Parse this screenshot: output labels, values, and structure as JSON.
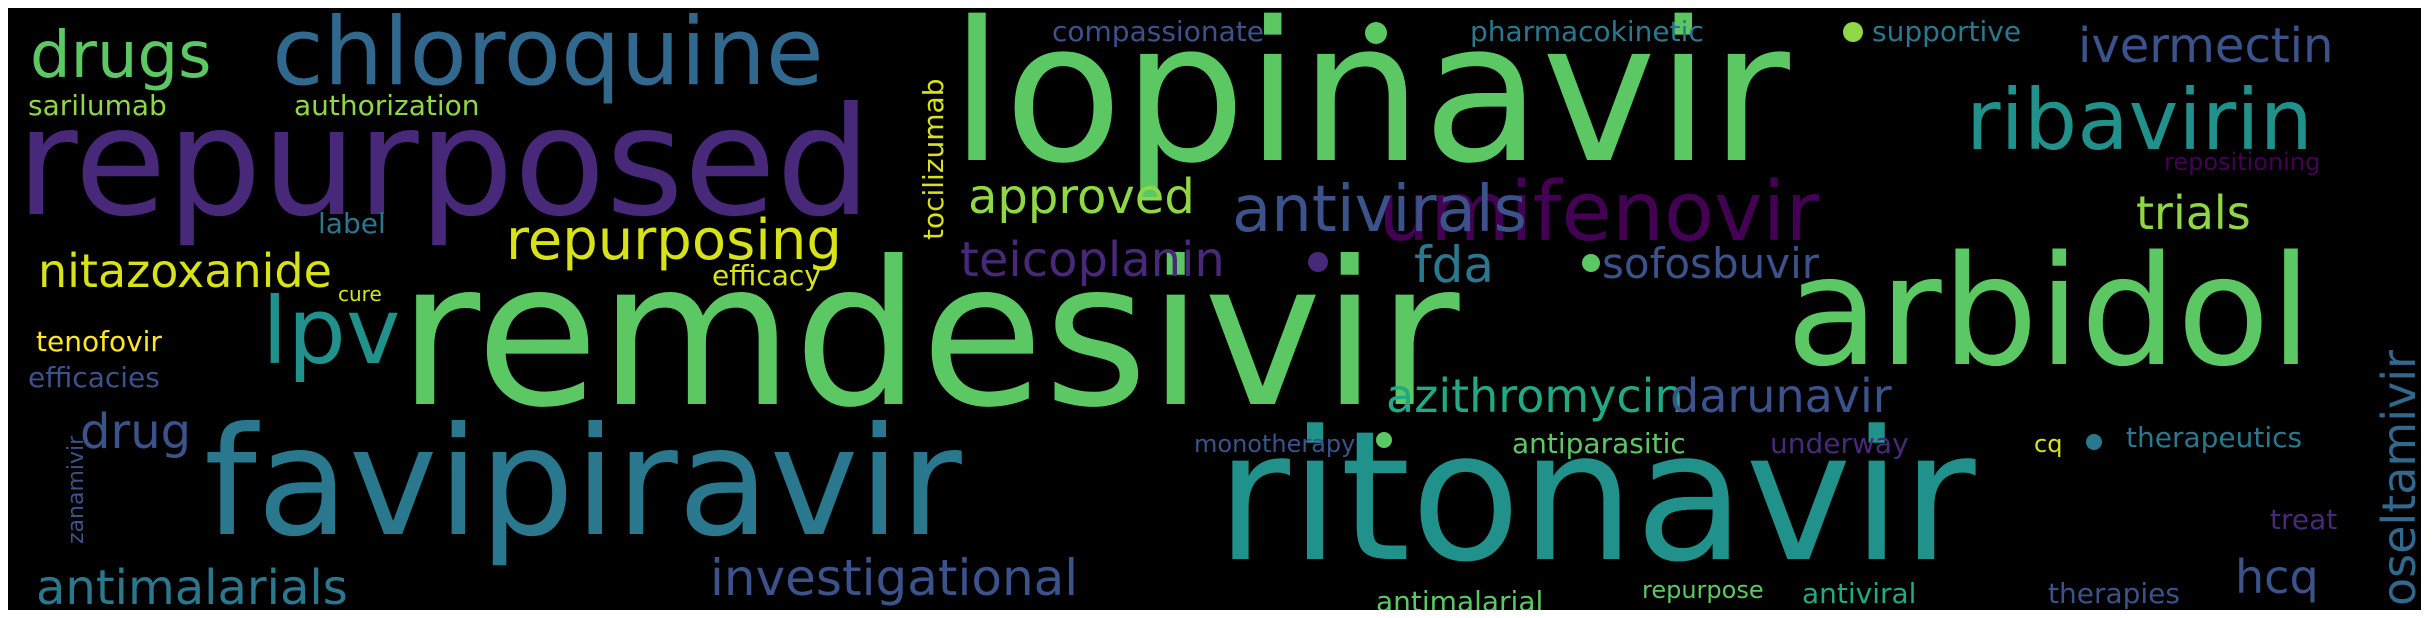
{
  "colors": {
    "background": "#000000",
    "frame": "#ffffff",
    "green": "#5cc863",
    "light_green": "#8fd744",
    "yellow": "#d8e219",
    "teal": "#21918c",
    "blue": "#3b528b",
    "purple": "#481f70",
    "dark_purple": "#440154"
  },
  "words": [
    {
      "text": "remdesivir",
      "color": "#5cc863"
    },
    {
      "text": "lopinavir",
      "color": "#5cc863"
    },
    {
      "text": "ritonavir",
      "color": "#21918c"
    },
    {
      "text": "favipiravir",
      "color": "#2a788e"
    },
    {
      "text": "repurposed",
      "color": "#482878"
    },
    {
      "text": "arbidol",
      "color": "#5cc863"
    },
    {
      "text": "chloroquine",
      "color": "#31688e"
    },
    {
      "text": "umifenovir",
      "color": "#440154"
    },
    {
      "text": "antivirals",
      "color": "#3b528b"
    },
    {
      "text": "ribavirin",
      "color": "#21918c"
    },
    {
      "text": "repurposing",
      "color": "#d8e219"
    },
    {
      "text": "lpv",
      "color": "#21918c"
    },
    {
      "text": "drugs",
      "color": "#5cc863"
    },
    {
      "text": "investigational",
      "color": "#3b528b"
    },
    {
      "text": "antimalarials",
      "color": "#2a788e"
    },
    {
      "text": "teicoplanin",
      "color": "#482878"
    },
    {
      "text": "nitazoxanide",
      "color": "#d8e219"
    },
    {
      "text": "ivermectin",
      "color": "#3b528b"
    },
    {
      "text": "azithromycin",
      "color": "#22a884"
    },
    {
      "text": "darunavir",
      "color": "#3b528b"
    },
    {
      "text": "sofosbuvir",
      "color": "#3b528b"
    },
    {
      "text": "approved",
      "color": "#8fd744"
    },
    {
      "text": "trials",
      "color": "#8fd744"
    },
    {
      "text": "fda",
      "color": "#2a788e"
    },
    {
      "text": "drug",
      "color": "#3b528b"
    },
    {
      "text": "oseltamivir",
      "color": "#31688e"
    },
    {
      "text": "hcq",
      "color": "#3b528b"
    },
    {
      "text": "tocilizumab",
      "color": "#d8e219"
    },
    {
      "text": "compassionate",
      "color": "#3b528b"
    },
    {
      "text": "pharmacokinetic",
      "color": "#2a788e"
    },
    {
      "text": "supportive",
      "color": "#2a788e"
    },
    {
      "text": "sarilumab",
      "color": "#8fd744"
    },
    {
      "text": "authorization",
      "color": "#8fd744"
    },
    {
      "text": "label",
      "color": "#2a788e"
    },
    {
      "text": "cure",
      "color": "#d8e219"
    },
    {
      "text": "efficacy",
      "color": "#d8e219"
    },
    {
      "text": "tenofovir",
      "color": "#fde725"
    },
    {
      "text": "efficacies",
      "color": "#3b528b"
    },
    {
      "text": "zanamivir",
      "color": "#3b528b"
    },
    {
      "text": "repositioning",
      "color": "#440154"
    },
    {
      "text": "monotherapy",
      "color": "#3b528b"
    },
    {
      "text": "antiparasitic",
      "color": "#5cc863"
    },
    {
      "text": "underway",
      "color": "#482878"
    },
    {
      "text": "cq",
      "color": "#d8e219"
    },
    {
      "text": "therapeutics",
      "color": "#2a788e"
    },
    {
      "text": "treat",
      "color": "#482878"
    },
    {
      "text": "antimalarial",
      "color": "#5cc863"
    },
    {
      "text": "repurpose",
      "color": "#5cc863"
    },
    {
      "text": "antiviral",
      "color": "#22a884"
    },
    {
      "text": "therapies",
      "color": "#3b528b"
    }
  ],
  "dots": [
    {
      "name": "dot-lopinavir",
      "color": "#5cc863"
    },
    {
      "name": "dot-supportive",
      "color": "#8fd744"
    },
    {
      "name": "dot-teicoplanin",
      "color": "#482878"
    },
    {
      "name": "dot-sofosbuvir",
      "color": "#5cc863"
    },
    {
      "name": "dot-monotherapy",
      "color": "#5cc863"
    },
    {
      "name": "dot-cq",
      "color": "#2a788e"
    }
  ]
}
